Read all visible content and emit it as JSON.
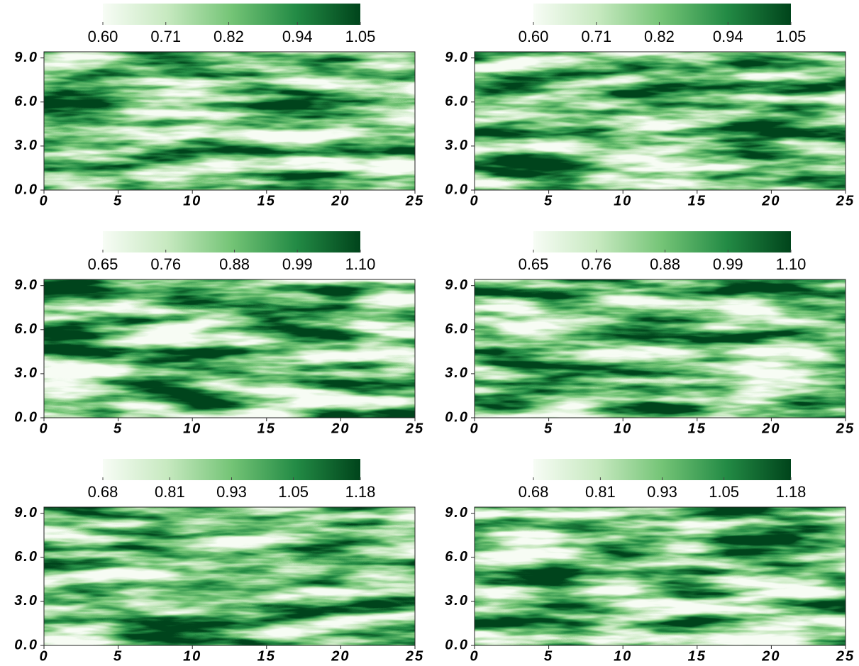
{
  "chart_data": [
    {
      "type": "heatmap",
      "colormap": "Greens",
      "xlim": [
        0,
        25
      ],
      "ylim": [
        0,
        9.42
      ],
      "xticks": [
        0,
        5,
        10,
        15,
        20,
        25
      ],
      "yticks": [
        {
          "value": 0,
          "label": "0.0"
        },
        {
          "value": 3,
          "label": "3.0"
        },
        {
          "value": 6,
          "label": "6.0"
        },
        {
          "value": 9,
          "label": "9.0"
        }
      ],
      "clim": [
        0.6,
        1.05
      ],
      "cticks": [
        {
          "value": 0.6,
          "label": "0.60"
        },
        0.71,
        0.82,
        0.94,
        1.05
      ]
    },
    {
      "type": "heatmap",
      "colormap": "Greens",
      "xlim": [
        0,
        25
      ],
      "ylim": [
        0,
        9.42
      ],
      "xticks": [
        0,
        5,
        10,
        15,
        20,
        25
      ],
      "yticks": [
        {
          "value": 0,
          "label": "0.0"
        },
        {
          "value": 3,
          "label": "3.0"
        },
        {
          "value": 6,
          "label": "6.0"
        },
        {
          "value": 9,
          "label": "9.0"
        }
      ],
      "clim": [
        0.6,
        1.05
      ],
      "cticks": [
        {
          "value": 0.6,
          "label": "0.60"
        },
        0.71,
        0.82,
        0.94,
        1.05
      ]
    },
    {
      "type": "heatmap",
      "colormap": "Greens",
      "xlim": [
        0,
        25
      ],
      "ylim": [
        0,
        9.42
      ],
      "xticks": [
        0,
        5,
        10,
        15,
        20,
        25
      ],
      "yticks": [
        {
          "value": 0,
          "label": "0.0"
        },
        {
          "value": 3,
          "label": "3.0"
        },
        {
          "value": 6,
          "label": "6.0"
        },
        {
          "value": 9,
          "label": "9.0"
        }
      ],
      "clim": [
        0.65,
        1.1
      ],
      "cticks": [
        0.65,
        0.76,
        0.88,
        0.99,
        {
          "value": 1.1,
          "label": "1.10"
        }
      ]
    },
    {
      "type": "heatmap",
      "colormap": "Greens",
      "xlim": [
        0,
        25
      ],
      "ylim": [
        0,
        9.42
      ],
      "xticks": [
        0,
        5,
        10,
        15,
        20,
        25
      ],
      "yticks": [
        {
          "value": 0,
          "label": "0.0"
        },
        {
          "value": 3,
          "label": "3.0"
        },
        {
          "value": 6,
          "label": "6.0"
        },
        {
          "value": 9,
          "label": "9.0"
        }
      ],
      "clim": [
        0.65,
        1.1
      ],
      "cticks": [
        0.65,
        0.76,
        0.88,
        0.99,
        {
          "value": 1.1,
          "label": "1.10"
        }
      ]
    },
    {
      "type": "heatmap",
      "colormap": "Greens",
      "xlim": [
        0,
        25
      ],
      "ylim": [
        0,
        9.42
      ],
      "xticks": [
        0,
        5,
        10,
        15,
        20,
        25
      ],
      "yticks": [
        {
          "value": 0,
          "label": "0.0"
        },
        {
          "value": 3,
          "label": "3.0"
        },
        {
          "value": 6,
          "label": "6.0"
        },
        {
          "value": 9,
          "label": "9.0"
        }
      ],
      "clim": [
        0.68,
        1.18
      ],
      "cticks": [
        0.68,
        0.81,
        0.93,
        1.05,
        1.18
      ]
    },
    {
      "type": "heatmap",
      "colormap": "Greens",
      "xlim": [
        0,
        25
      ],
      "ylim": [
        0,
        9.42
      ],
      "xticks": [
        0,
        5,
        10,
        15,
        20,
        25
      ],
      "yticks": [
        {
          "value": 0,
          "label": "0.0"
        },
        {
          "value": 3,
          "label": "3.0"
        },
        {
          "value": 6,
          "label": "6.0"
        },
        {
          "value": 9,
          "label": "9.0"
        }
      ],
      "clim": [
        0.68,
        1.18
      ],
      "cticks": [
        0.68,
        0.81,
        0.93,
        1.05,
        1.18
      ]
    }
  ]
}
